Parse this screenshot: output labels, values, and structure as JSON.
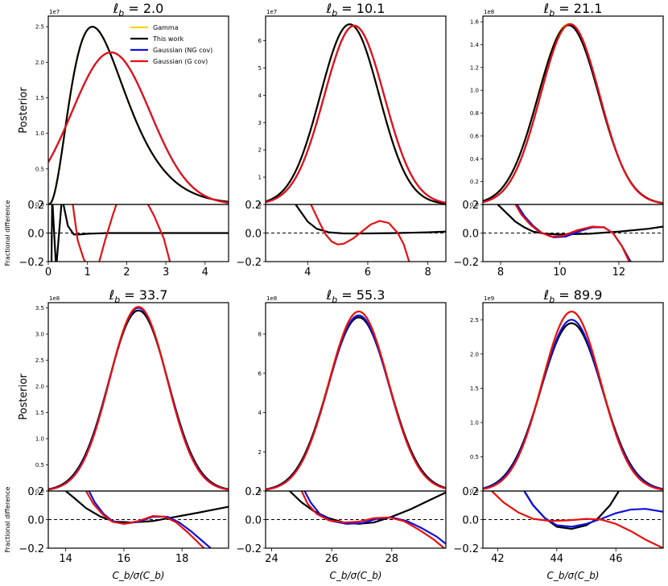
{
  "figure": {
    "ylabel_top": "Posterior",
    "ylabel_bottom": "Fractional difference",
    "xlabel": "C_b/σ(C_b)",
    "legend": [
      {
        "name": "Gamma",
        "color": "#FFD21A"
      },
      {
        "name": "This work",
        "color": "#000000"
      },
      {
        "name": "Gaussian (NG cov)",
        "color": "#1010E0"
      },
      {
        "name": "Gaussian (G cov)",
        "color": "#E81010"
      }
    ]
  },
  "chart_data": [
    {
      "type": "line",
      "title": "ℓ_b = 2.0",
      "title_value": "2.0",
      "xlim": [
        0,
        4.6
      ],
      "xticks": [
        0,
        1,
        2,
        3,
        4
      ],
      "ylim": [
        0,
        2.65
      ],
      "yticks": [
        0,
        0.5,
        1.0,
        1.5,
        2.0,
        2.5
      ],
      "yexp": "1e7",
      "frac_ylim": [
        -0.2,
        0.2
      ],
      "frac_yticks": [
        -0.2,
        0.0,
        0.2
      ],
      "series": [
        {
          "name": "Gamma",
          "color": "#FFD21A",
          "shape": {
            "kind": "gamma",
            "alpha": 3.5,
            "theta": 0.45,
            "peak": 2.5
          }
        },
        {
          "name": "This work",
          "color": "#000000",
          "shape": {
            "kind": "gamma",
            "alpha": 3.5,
            "theta": 0.45,
            "peak": 2.5
          }
        },
        {
          "name": "Gaussian (NG cov)",
          "color": "#1010E0",
          "shape": {
            "kind": "gauss",
            "mu": 1.6,
            "sigma": 1.0,
            "peak": 2.14
          }
        },
        {
          "name": "Gaussian (G cov)",
          "color": "#E81010",
          "shape": {
            "kind": "gauss",
            "mu": 1.6,
            "sigma": 1.0,
            "peak": 2.14
          }
        }
      ],
      "frac_series": [
        {
          "color": "#000000",
          "x": [
            0.08,
            0.1,
            0.2,
            0.35,
            0.5,
            0.65,
            0.8,
            1.0,
            1.5,
            2.0,
            3.0,
            4.0,
            4.6
          ],
          "y": [
            -0.25,
            0.25,
            -0.25,
            0.25,
            0.05,
            -0.01,
            -0.01,
            -0.005,
            0.0,
            0.0,
            0.0,
            0.0,
            0.0
          ]
        },
        {
          "color": "#E81010",
          "x": [
            0.6,
            0.75,
            0.9,
            1.05
          ],
          "y": [
            0.25,
            -0.05,
            -0.18,
            -0.25
          ]
        },
        {
          "color": "#E81010",
          "x": [
            1.25,
            1.45,
            1.65,
            1.8
          ],
          "y": [
            -0.25,
            -0.05,
            0.13,
            0.25
          ]
        },
        {
          "color": "#E81010",
          "x": [
            2.45,
            2.7,
            2.95,
            3.15
          ],
          "y": [
            0.25,
            0.12,
            -0.04,
            -0.25
          ]
        }
      ]
    },
    {
      "type": "line",
      "title": "ℓ_b = 10.1",
      "title_value": "10.1",
      "xlim": [
        2.6,
        8.6
      ],
      "xticks": [
        4,
        6,
        8
      ],
      "ylim": [
        0,
        6.9
      ],
      "yticks": [
        0,
        1,
        2,
        3,
        4,
        5,
        6
      ],
      "yexp": "1e7",
      "frac_ylim": [
        -0.2,
        0.2
      ],
      "frac_yticks": [
        -0.2,
        0.0,
        0.2
      ],
      "series": [
        {
          "name": "Gamma",
          "color": "#FFD21A",
          "shape": {
            "kind": "gauss",
            "mu": 5.4,
            "sigma": 0.98,
            "peak": 6.6
          }
        },
        {
          "name": "This work",
          "color": "#000000",
          "shape": {
            "kind": "gauss",
            "mu": 5.4,
            "sigma": 0.98,
            "peak": 6.6
          }
        },
        {
          "name": "Gaussian (NG cov)",
          "color": "#1010E0",
          "shape": {
            "kind": "gauss",
            "mu": 5.55,
            "sigma": 1.0,
            "peak": 6.55
          }
        },
        {
          "name": "Gaussian (G cov)",
          "color": "#E81010",
          "shape": {
            "kind": "gauss",
            "mu": 5.55,
            "sigma": 1.0,
            "peak": 6.55
          }
        }
      ],
      "frac_series": [
        {
          "color": "#000000",
          "x": [
            3.6,
            3.8,
            4.0,
            4.3,
            4.7,
            5.2,
            6.0,
            7.0,
            8.0,
            8.6
          ],
          "y": [
            0.2,
            0.14,
            0.08,
            0.03,
            0.005,
            -0.003,
            -0.003,
            0.0,
            0.005,
            0.01
          ]
        },
        {
          "color": "#E81010",
          "x": [
            4.0,
            4.2,
            4.4,
            4.6,
            4.8,
            5.0,
            5.2,
            5.5,
            5.8,
            6.1,
            6.4,
            6.7,
            7.0,
            7.2,
            7.45
          ],
          "y": [
            0.25,
            0.16,
            0.07,
            -0.01,
            -0.06,
            -0.08,
            -0.075,
            -0.04,
            0.01,
            0.06,
            0.085,
            0.07,
            0.0,
            -0.08,
            -0.25
          ]
        }
      ]
    },
    {
      "type": "line",
      "title": "ℓ_b = 21.1",
      "title_value": "21.1",
      "xlim": [
        7.4,
        13.5
      ],
      "xticks": [
        8,
        10,
        12
      ],
      "ylim": [
        0,
        1.65
      ],
      "yticks": [
        0,
        0.2,
        0.4,
        0.6,
        0.8,
        1.0,
        1.2,
        1.4,
        1.6
      ],
      "yexp": "1e8",
      "frac_ylim": [
        -0.2,
        0.2
      ],
      "frac_yticks": [
        -0.2,
        0.0,
        0.2
      ],
      "series": [
        {
          "name": "Gamma",
          "color": "#FFD21A",
          "shape": {
            "kind": "gauss",
            "mu": 10.3,
            "sigma": 1.03,
            "peak": 1.58
          }
        },
        {
          "name": "This work",
          "color": "#000000",
          "shape": {
            "kind": "gauss",
            "mu": 10.3,
            "sigma": 1.03,
            "peak": 1.57
          }
        },
        {
          "name": "Gaussian (NG cov)",
          "color": "#1010E0",
          "shape": {
            "kind": "gauss",
            "mu": 10.35,
            "sigma": 1.0,
            "peak": 1.58
          }
        },
        {
          "name": "Gaussian (G cov)",
          "color": "#E81010",
          "shape": {
            "kind": "gauss",
            "mu": 10.35,
            "sigma": 1.0,
            "peak": 1.58
          }
        }
      ],
      "frac_series": [
        {
          "color": "#000000",
          "x": [
            7.9,
            8.2,
            8.5,
            8.8,
            9.1,
            9.5,
            10.0,
            11.0,
            12.0,
            13.0,
            13.5
          ],
          "y": [
            0.2,
            0.14,
            0.08,
            0.04,
            0.01,
            -0.005,
            -0.01,
            -0.005,
            0.01,
            0.03,
            0.045
          ]
        },
        {
          "color": "#1010E0",
          "x": [
            8.55,
            8.8,
            9.1,
            9.4,
            9.8,
            10.2,
            10.7,
            11.1,
            11.5,
            11.8,
            12.1,
            12.4
          ],
          "y": [
            0.2,
            0.12,
            0.05,
            0.0,
            -0.03,
            -0.025,
            0.015,
            0.04,
            0.04,
            0.0,
            -0.09,
            -0.2
          ]
        },
        {
          "color": "#E81010",
          "x": [
            8.45,
            8.7,
            9.0,
            9.3,
            9.7,
            10.1,
            10.6,
            11.1,
            11.5,
            11.8,
            12.1,
            12.35
          ],
          "y": [
            0.22,
            0.13,
            0.06,
            0.01,
            -0.025,
            -0.02,
            0.02,
            0.045,
            0.04,
            0.0,
            -0.09,
            -0.2
          ]
        }
      ]
    },
    {
      "type": "line",
      "title": "ℓ_b = 33.7",
      "title_value": "33.7",
      "xlim": [
        13.4,
        19.6
      ],
      "xticks": [
        14,
        16,
        18
      ],
      "ylim": [
        0,
        3.6
      ],
      "yticks": [
        0,
        0.5,
        1.0,
        1.5,
        2.0,
        2.5,
        3.0,
        3.5
      ],
      "yexp": "1e8",
      "frac_ylim": [
        -0.2,
        0.2
      ],
      "frac_yticks": [
        -0.2,
        0.0,
        0.2
      ],
      "series": [
        {
          "name": "Gamma",
          "color": "#FFD21A",
          "shape": {
            "kind": "gauss",
            "mu": 16.5,
            "sigma": 1.0,
            "peak": 3.52
          }
        },
        {
          "name": "This work",
          "color": "#000000",
          "shape": {
            "kind": "gauss",
            "mu": 16.5,
            "sigma": 1.02,
            "peak": 3.45
          }
        },
        {
          "name": "Gaussian (NG cov)",
          "color": "#1010E0",
          "shape": {
            "kind": "gauss",
            "mu": 16.5,
            "sigma": 1.0,
            "peak": 3.5
          }
        },
        {
          "name": "Gaussian (G cov)",
          "color": "#E81010",
          "shape": {
            "kind": "gauss",
            "mu": 16.5,
            "sigma": 0.99,
            "peak": 3.52
          }
        }
      ],
      "frac_series": [
        {
          "color": "#000000",
          "x": [
            14.0,
            14.3,
            14.7,
            15.2,
            15.7,
            16.3,
            17.0,
            17.8,
            18.6,
            19.6
          ],
          "y": [
            0.2,
            0.15,
            0.08,
            0.02,
            -0.015,
            -0.02,
            -0.01,
            0.02,
            0.05,
            0.09
          ]
        },
        {
          "color": "#1010E0",
          "x": [
            14.8,
            15.0,
            15.3,
            15.6,
            16.0,
            16.5,
            17.0,
            17.5,
            17.9,
            18.3,
            18.7,
            19.1
          ],
          "y": [
            0.2,
            0.12,
            0.04,
            -0.01,
            -0.03,
            -0.015,
            0.02,
            0.02,
            -0.02,
            -0.08,
            -0.15,
            -0.22
          ]
        },
        {
          "color": "#E81010",
          "x": [
            14.7,
            14.95,
            15.3,
            15.6,
            16.0,
            16.5,
            17.0,
            17.4,
            17.8,
            18.2,
            18.55,
            18.9
          ],
          "y": [
            0.2,
            0.11,
            0.03,
            -0.015,
            -0.03,
            -0.01,
            0.025,
            0.02,
            -0.02,
            -0.09,
            -0.16,
            -0.23
          ]
        }
      ]
    },
    {
      "type": "line",
      "title": "ℓ_b = 55.3",
      "title_value": "55.3",
      "xlim": [
        23.8,
        29.8
      ],
      "xticks": [
        24,
        26,
        28
      ],
      "ylim": [
        0,
        9.6
      ],
      "yticks": [
        0,
        2,
        4,
        6,
        8
      ],
      "yexp": "1e8",
      "frac_ylim": [
        -0.2,
        0.2
      ],
      "frac_yticks": [
        -0.2,
        0.0,
        0.2
      ],
      "series": [
        {
          "name": "Gamma",
          "color": "#FFD21A",
          "shape": {
            "kind": "gauss",
            "mu": 26.9,
            "sigma": 1.0,
            "peak": 9.15
          }
        },
        {
          "name": "This work",
          "color": "#000000",
          "shape": {
            "kind": "gauss",
            "mu": 26.9,
            "sigma": 1.02,
            "peak": 8.85
          }
        },
        {
          "name": "Gaussian (NG cov)",
          "color": "#1010E0",
          "shape": {
            "kind": "gauss",
            "mu": 26.9,
            "sigma": 1.0,
            "peak": 8.95
          }
        },
        {
          "name": "Gaussian (G cov)",
          "color": "#E81010",
          "shape": {
            "kind": "gauss",
            "mu": 26.9,
            "sigma": 0.99,
            "peak": 9.15
          }
        }
      ],
      "frac_series": [
        {
          "color": "#000000",
          "x": [
            24.6,
            25.0,
            25.4,
            25.9,
            26.4,
            26.9,
            27.4,
            28.0,
            28.6,
            29.2,
            29.8
          ],
          "y": [
            0.2,
            0.12,
            0.06,
            0.01,
            -0.02,
            -0.03,
            -0.02,
            0.02,
            0.07,
            0.13,
            0.19
          ]
        },
        {
          "color": "#1010E0",
          "x": [
            25.1,
            25.3,
            25.6,
            26.0,
            26.5,
            27.0,
            27.5,
            28.0,
            28.5,
            29.0,
            29.5,
            29.8
          ],
          "y": [
            0.2,
            0.12,
            0.04,
            -0.01,
            -0.03,
            -0.025,
            0.005,
            0.015,
            -0.01,
            -0.06,
            -0.12,
            -0.17
          ]
        },
        {
          "color": "#E81010",
          "x": [
            25.0,
            25.2,
            25.5,
            25.9,
            26.4,
            26.9,
            27.4,
            27.9,
            28.4,
            28.9,
            29.4,
            29.8
          ],
          "y": [
            0.2,
            0.11,
            0.04,
            -0.005,
            -0.02,
            -0.015,
            0.01,
            0.015,
            -0.01,
            -0.07,
            -0.14,
            -0.21
          ]
        }
      ]
    },
    {
      "type": "line",
      "title": "ℓ_b = 89.9",
      "title_value": "89.9",
      "xlim": [
        41.5,
        47.6
      ],
      "xticks": [
        42,
        44,
        46
      ],
      "ylim": [
        0,
        2.75
      ],
      "yticks": [
        0,
        0.5,
        1.0,
        1.5,
        2.0,
        2.5
      ],
      "yexp": "1e9",
      "frac_ylim": [
        -0.2,
        0.2
      ],
      "frac_yticks": [
        -0.2,
        0.0,
        0.2
      ],
      "series": [
        {
          "name": "Gamma",
          "color": "#FFD21A",
          "shape": {
            "kind": "gauss",
            "mu": 44.5,
            "sigma": 1.0,
            "peak": 2.62
          }
        },
        {
          "name": "This work",
          "color": "#000000",
          "shape": {
            "kind": "gauss",
            "mu": 44.5,
            "sigma": 1.04,
            "peak": 2.45
          }
        },
        {
          "name": "Gaussian (NG cov)",
          "color": "#1010E0",
          "shape": {
            "kind": "gauss",
            "mu": 44.5,
            "sigma": 1.02,
            "peak": 2.5
          }
        },
        {
          "name": "Gaussian (G cov)",
          "color": "#E81010",
          "shape": {
            "kind": "gauss",
            "mu": 44.5,
            "sigma": 0.99,
            "peak": 2.62
          }
        }
      ],
      "frac_series": [
        {
          "color": "#000000",
          "x": [
            42.9,
            43.2,
            43.6,
            44.0,
            44.5,
            45.0,
            45.4,
            45.8,
            46.1
          ],
          "y": [
            0.2,
            0.1,
            0.01,
            -0.05,
            -0.065,
            -0.04,
            0.01,
            0.1,
            0.2
          ]
        },
        {
          "color": "#1010E0",
          "x": [
            42.9,
            43.2,
            43.6,
            44.0,
            44.5,
            45.0,
            45.5,
            46.0,
            46.5,
            47.0,
            47.6
          ],
          "y": [
            0.2,
            0.1,
            0.01,
            -0.04,
            -0.05,
            -0.03,
            0.005,
            0.045,
            0.07,
            0.075,
            0.055
          ]
        },
        {
          "color": "#E81010",
          "x": [
            41.8,
            42.2,
            42.7,
            43.2,
            43.8,
            44.4,
            45.0,
            45.5,
            46.0,
            46.5,
            47.0,
            47.6
          ],
          "y": [
            0.2,
            0.12,
            0.05,
            0.005,
            -0.01,
            -0.005,
            0.005,
            0.0,
            -0.03,
            -0.08,
            -0.14,
            -0.2
          ]
        }
      ]
    }
  ]
}
